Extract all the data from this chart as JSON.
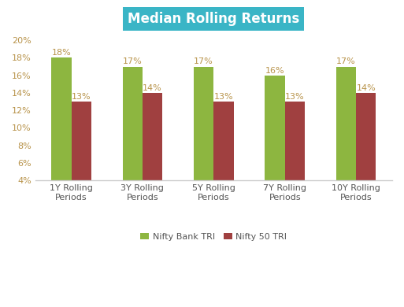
{
  "title": "Median Rolling Returns",
  "title_bg_color": "#3ab5c6",
  "title_text_color": "#ffffff",
  "categories": [
    "1Y Rolling\nPeriods",
    "3Y Rolling\nPeriods",
    "5Y Rolling\nPeriods",
    "7Y Rolling\nPeriods",
    "10Y Rolling\nPeriods"
  ],
  "nifty_bank": [
    18,
    17,
    17,
    16,
    17
  ],
  "nifty_50": [
    13,
    14,
    13,
    13,
    14
  ],
  "nifty_bank_color": "#8db640",
  "nifty_50_color": "#a04040",
  "bar_labels_bank": [
    "18%",
    "17%",
    "17%",
    "16%",
    "17%"
  ],
  "bar_labels_50": [
    "13%",
    "14%",
    "13%",
    "13%",
    "14%"
  ],
  "legend_bank": "Nifty Bank TRI",
  "legend_50": "Nifty 50 TRI",
  "ylim": [
    4,
    21
  ],
  "yticks": [
    4,
    6,
    8,
    10,
    12,
    14,
    16,
    18,
    20
  ],
  "ytick_labels": [
    "4%",
    "6%",
    "8%",
    "10%",
    "12%",
    "14%",
    "16%",
    "18%",
    "20%"
  ],
  "bg_color": "#ffffff",
  "label_color": "#b8934a",
  "axis_color": "#cccccc",
  "bar_width": 0.28,
  "label_fontsize": 8,
  "tick_fontsize": 8,
  "title_fontsize": 12
}
